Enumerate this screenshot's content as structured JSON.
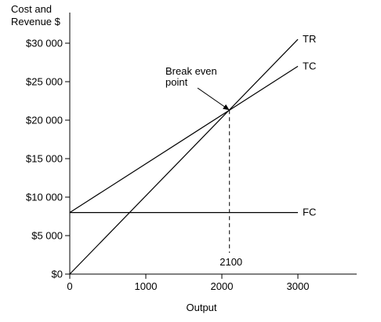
{
  "chart_data": {
    "type": "line",
    "xlabel": "Output",
    "ylabel": "Cost and Revenue $",
    "ylabel_lines": [
      "Cost and",
      "Revenue $"
    ],
    "xlim": [
      0,
      3000
    ],
    "ylim": [
      0,
      30000
    ],
    "x_ticks": [
      0,
      1000,
      2000,
      3000
    ],
    "x_tick_labels": [
      "0",
      "1000",
      "2000",
      "3000"
    ],
    "y_ticks": [
      0,
      5000,
      10000,
      15000,
      20000,
      25000,
      30000
    ],
    "y_tick_labels": [
      "$0",
      "$5 000",
      "$10 000",
      "$15 000",
      "$20 000",
      "$25 000",
      "$30 000"
    ],
    "grid": false,
    "series": [
      {
        "name": "TR",
        "x": [
          0,
          3000
        ],
        "y": [
          0,
          30500
        ]
      },
      {
        "name": "TC",
        "x": [
          0,
          3000
        ],
        "y": [
          8000,
          27000
        ]
      },
      {
        "name": "FC",
        "x": [
          0,
          3000
        ],
        "y": [
          8000,
          8000
        ]
      }
    ],
    "break_even": {
      "x": 2100,
      "y": 21300
    },
    "annotations": {
      "break_even_lines": [
        "Break even",
        "point"
      ],
      "break_even_x_label": "2100"
    }
  }
}
